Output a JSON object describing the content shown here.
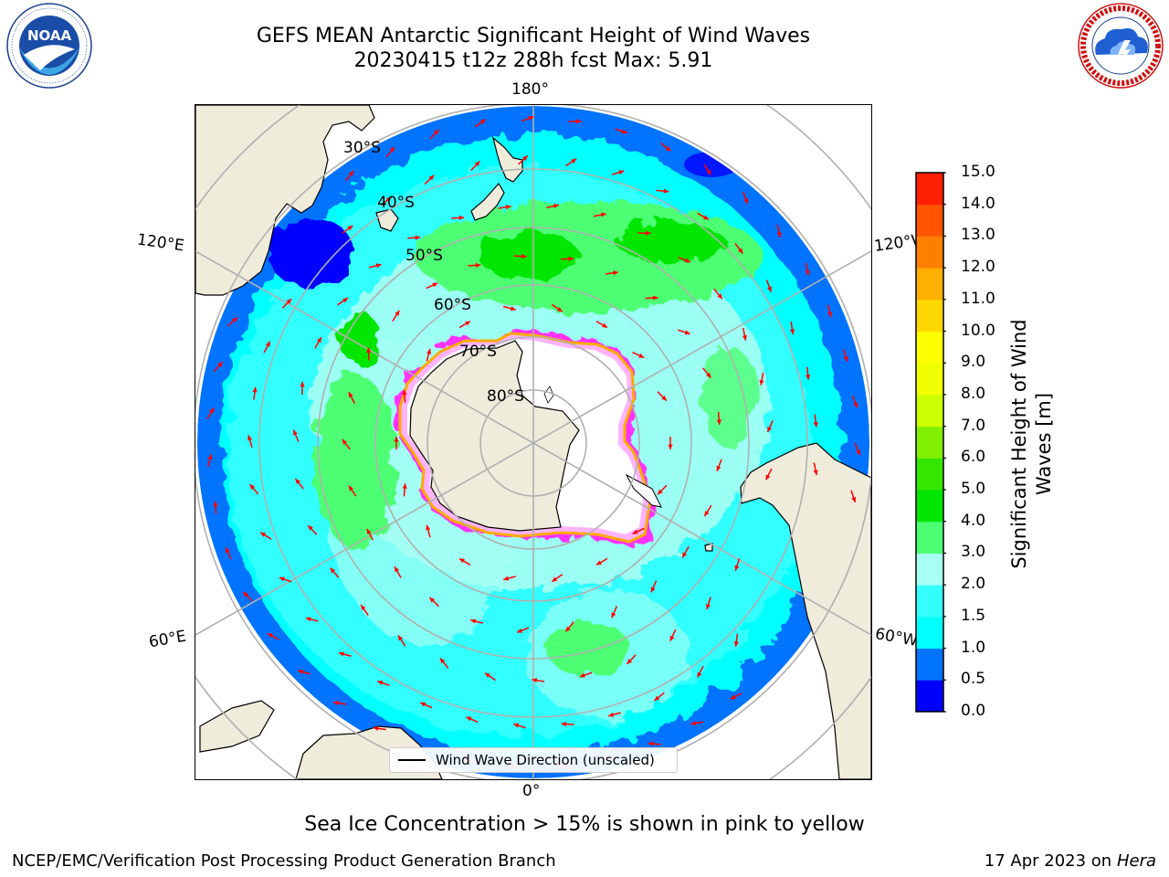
{
  "title": {
    "line1": "GEFS MEAN Antarctic Significant Height of Wind Waves",
    "line2": "20230415 t12z 288h fcst   Max: 5.91"
  },
  "logos": {
    "left": {
      "name": "noaa-logo",
      "text": "NOAA",
      "ring_text": "NATIONAL OCEANIC AND ATMOSPHERIC ADMINISTRATION · U.S. DEPARTMENT OF COMMERCE"
    },
    "right": {
      "name": "nws-logo",
      "ring_text": "NATIONAL WEATHER SERVICE"
    }
  },
  "map": {
    "projection": "south-polar-stereographic",
    "longitude_labels": {
      "top": "180°",
      "bottom": "0°",
      "upper_left": "120°E",
      "lower_left": "60°E",
      "upper_right": "120°W",
      "lower_right": "60°W"
    },
    "latitude_labels": [
      "30°S",
      "40°S",
      "50°S",
      "60°S",
      "70°S",
      "80°S"
    ],
    "land_color": "#efecdc",
    "ocean_colors": {
      "0.5-1.0": "#0073ff",
      "1.0-1.5": "#00ffff",
      "1.5-2.0": "#33ffff",
      "2.0-3.0": "#a6fff2",
      "3.0-4.0": "#4dff73",
      "4.0-5.0": "#00e600"
    },
    "sea_ice_colors": [
      "#ff33ff",
      "#ffb3ff",
      "#ffaa00",
      "#ffff66"
    ],
    "arrow_color": "#ff0000",
    "legend": {
      "label": "Wind Wave Direction (unscaled)"
    }
  },
  "colorbar": {
    "title": "Significant Height of Wind Waves [m]",
    "ticks": [
      "0.0",
      "0.5",
      "1.0",
      "1.5",
      "2.0",
      "3.0",
      "4.0",
      "5.0",
      "6.0",
      "7.0",
      "8.0",
      "9.0",
      "10.0",
      "11.0",
      "12.0",
      "13.0",
      "14.0",
      "15.0"
    ],
    "colors": [
      "#0000ff",
      "#0073ff",
      "#00ffff",
      "#33ffff",
      "#a6fff2",
      "#4dff73",
      "#00e600",
      "#33e600",
      "#80f000",
      "#ccff00",
      "#f0ff00",
      "#ffff00",
      "#ffd700",
      "#ffb000",
      "#ff8000",
      "#ff5500",
      "#ff2000"
    ]
  },
  "notes": {
    "sea_ice": "Sea Ice Concentration > 15% is shown in pink to yellow"
  },
  "footer": {
    "left": "NCEP/EMC/Verification Post Processing Product Generation Branch",
    "right_prefix": "17 Apr 2023 on ",
    "right_host": "Hera"
  }
}
